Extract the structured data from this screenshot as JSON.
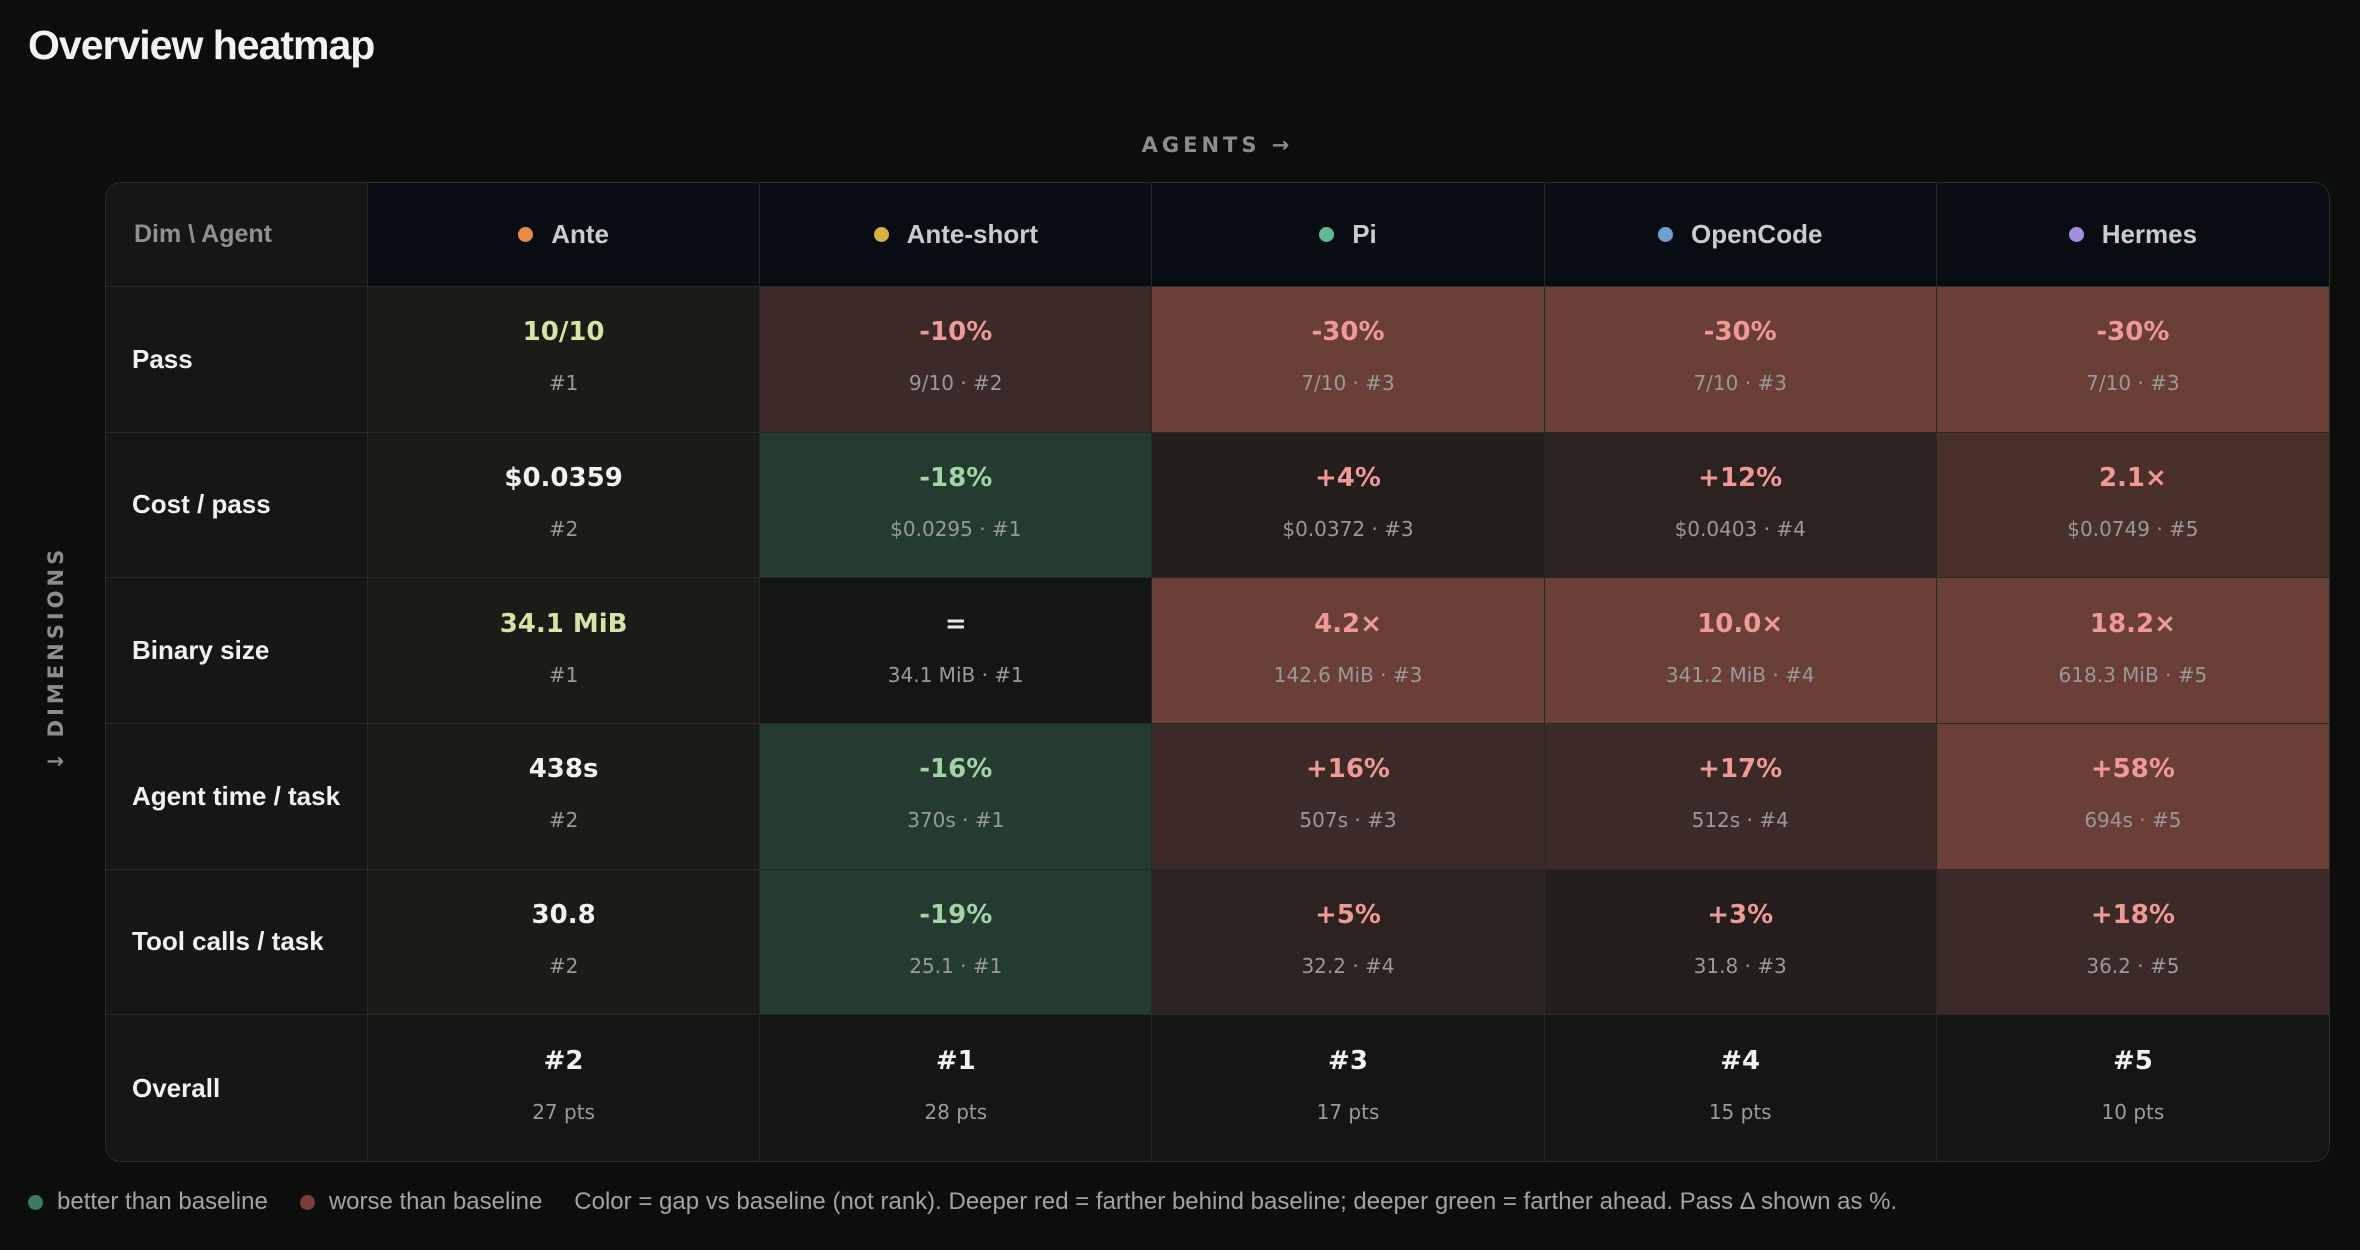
{
  "title": "Overview heatmap",
  "axes": {
    "agents": "AGENTS →",
    "dimensions": "↓ DIMENSIONS"
  },
  "corner": "Dim \\ Agent",
  "agents": [
    {
      "name": "Ante",
      "color": "#e98a45"
    },
    {
      "name": "Ante-short",
      "color": "#d7b13c"
    },
    {
      "name": "Pi",
      "color": "#5fba93"
    },
    {
      "name": "OpenCode",
      "color": "#6f9fd2"
    },
    {
      "name": "Hermes",
      "color": "#a08fdc"
    }
  ],
  "rows": [
    {
      "label": "Pass",
      "cells": [
        {
          "main": "10/10",
          "sub": "#1",
          "tone": "base-hi"
        },
        {
          "main": "-10%",
          "sub": "9/10 · #2",
          "tone": "red3"
        },
        {
          "main": "-30%",
          "sub": "7/10 · #3",
          "tone": "red5"
        },
        {
          "main": "-30%",
          "sub": "7/10 · #3",
          "tone": "red5"
        },
        {
          "main": "-30%",
          "sub": "7/10 · #3",
          "tone": "red5"
        }
      ]
    },
    {
      "label": "Cost / pass",
      "cells": [
        {
          "main": "$0.0359",
          "sub": "#2",
          "tone": "base"
        },
        {
          "main": "-18%",
          "sub": "$0.0295 · #1",
          "tone": "green"
        },
        {
          "main": "+4%",
          "sub": "$0.0372 · #3",
          "tone": "red1"
        },
        {
          "main": "+12%",
          "sub": "$0.0403 · #4",
          "tone": "red2"
        },
        {
          "main": "2.1×",
          "sub": "$0.0749 · #5",
          "tone": "red4"
        }
      ]
    },
    {
      "label": "Binary size",
      "cells": [
        {
          "main": "34.1 MiB",
          "sub": "#1",
          "tone": "base-hi"
        },
        {
          "main": "=",
          "sub": "34.1 MiB · #1",
          "tone": "neutral"
        },
        {
          "main": "4.2×",
          "sub": "142.6 MiB · #3",
          "tone": "red5"
        },
        {
          "main": "10.0×",
          "sub": "341.2 MiB · #4",
          "tone": "red5"
        },
        {
          "main": "18.2×",
          "sub": "618.3 MiB · #5",
          "tone": "red5"
        }
      ]
    },
    {
      "label": "Agent time / task",
      "cells": [
        {
          "main": "438s",
          "sub": "#2",
          "tone": "base"
        },
        {
          "main": "-16%",
          "sub": "370s · #1",
          "tone": "green"
        },
        {
          "main": "+16%",
          "sub": "507s · #3",
          "tone": "red3"
        },
        {
          "main": "+17%",
          "sub": "512s · #4",
          "tone": "red3"
        },
        {
          "main": "+58%",
          "sub": "694s · #5",
          "tone": "red5"
        }
      ]
    },
    {
      "label": "Tool calls / task",
      "cells": [
        {
          "main": "30.8",
          "sub": "#2",
          "tone": "base"
        },
        {
          "main": "-19%",
          "sub": "25.1 · #1",
          "tone": "green"
        },
        {
          "main": "+5%",
          "sub": "32.2 · #4",
          "tone": "red2"
        },
        {
          "main": "+3%",
          "sub": "31.8 · #3",
          "tone": "red1"
        },
        {
          "main": "+18%",
          "sub": "36.2 · #5",
          "tone": "red3"
        }
      ]
    },
    {
      "label": "Overall",
      "cells": [
        {
          "main": "#2",
          "sub": "27 pts",
          "tone": "overall"
        },
        {
          "main": "#1",
          "sub": "28 pts",
          "tone": "overall"
        },
        {
          "main": "#3",
          "sub": "17 pts",
          "tone": "overall"
        },
        {
          "main": "#4",
          "sub": "15 pts",
          "tone": "overall"
        },
        {
          "main": "#5",
          "sub": "10 pts",
          "tone": "overall"
        }
      ]
    }
  ],
  "legend": {
    "better": {
      "label": "better than baseline",
      "color": "#3c7a5c"
    },
    "worse": {
      "label": "worse than baseline",
      "color": "#7a3d37"
    },
    "note": "Color = gap vs baseline (not rank). Deeper red = farther behind baseline; deeper green = farther ahead. Pass Δ shown as %."
  }
}
